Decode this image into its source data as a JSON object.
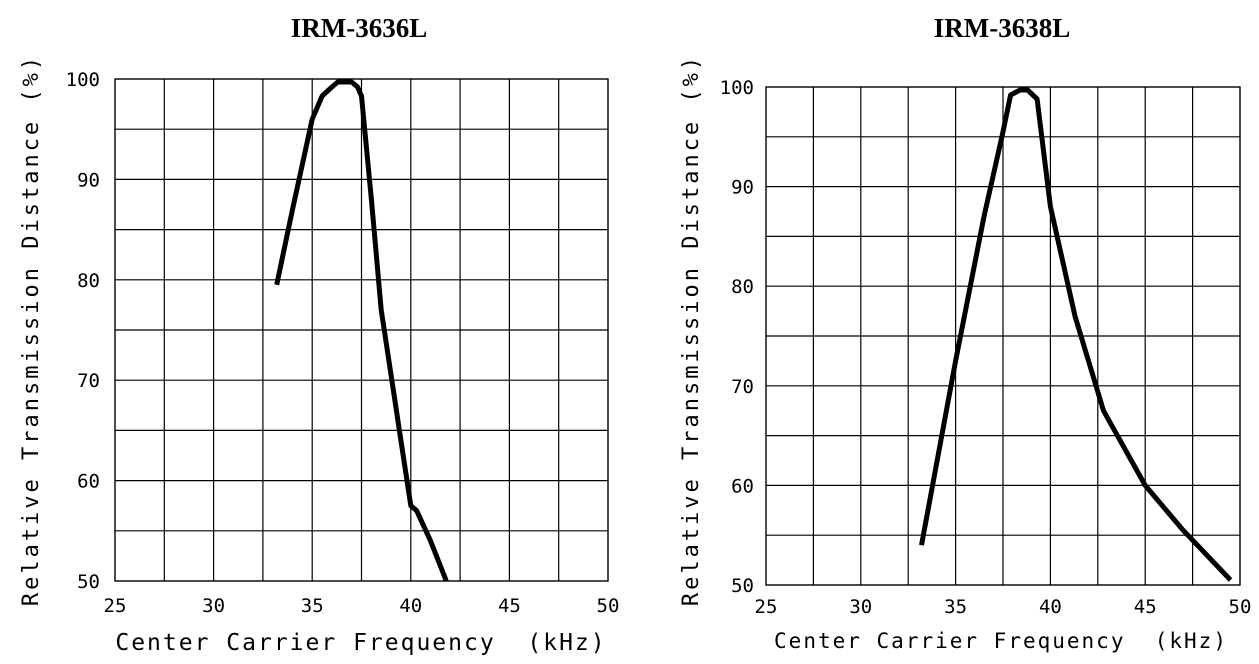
{
  "chart_data": [
    {
      "type": "line",
      "title": "IRM-3636L",
      "xlabel": "Center Carrier Frequency  (kHz)",
      "ylabel": "Relative Transmission Distance (%)",
      "xlim": [
        25,
        50
      ],
      "ylim": [
        50,
        100
      ],
      "xticks": [
        25,
        30,
        35,
        40,
        45,
        50
      ],
      "yticks": [
        50,
        60,
        70,
        80,
        90,
        100
      ],
      "grid": true,
      "series": [
        {
          "x": [
            33.2,
            34.0,
            35.0,
            35.5,
            36.0,
            36.3,
            37.0,
            37.3,
            37.5,
            38.0,
            38.5,
            39.0,
            39.5,
            40.0,
            40.3,
            41.0,
            41.8
          ],
          "y": [
            79.5,
            87.0,
            96.0,
            98.3,
            99.2,
            99.7,
            99.7,
            99.2,
            98.3,
            88.0,
            77.0,
            70.5,
            64.0,
            57.5,
            57.0,
            54.0,
            50.0
          ]
        }
      ]
    },
    {
      "type": "line",
      "title": "IRM-3638L",
      "xlabel": "Center Carrier Frequency  (kHz)",
      "ylabel": "Relative Transmission Distance (%)",
      "xlim": [
        25,
        50
      ],
      "ylim": [
        50,
        100
      ],
      "xticks": [
        25,
        30,
        35,
        40,
        45,
        50
      ],
      "yticks": [
        50,
        60,
        70,
        80,
        90,
        100
      ],
      "grid": true,
      "series": [
        {
          "x": [
            33.2,
            35.0,
            36.5,
            37.5,
            37.9,
            38.4,
            38.8,
            39.3,
            40.0,
            41.3,
            42.8,
            45.0,
            47.0,
            49.5
          ],
          "y": [
            54.0,
            72.5,
            87.0,
            95.5,
            99.2,
            99.7,
            99.7,
            98.8,
            88.0,
            77.0,
            67.5,
            60.0,
            55.5,
            50.5
          ]
        }
      ]
    }
  ]
}
